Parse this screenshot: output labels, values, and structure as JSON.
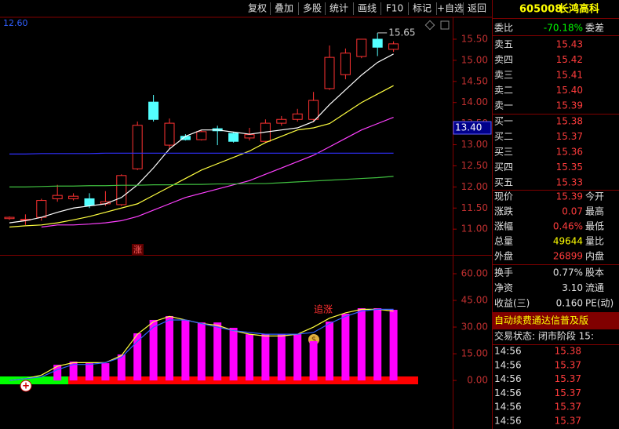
{
  "toolbar": [
    "复权",
    "叠加",
    "多股",
    "统计",
    "画线",
    "F10",
    "标记",
    "+自选",
    "返回"
  ],
  "chart_data": [
    {
      "type": "candlestick",
      "up_color": "#ff3232",
      "down_color": "#54ffff",
      "ylim": [
        10.39,
        16.02
      ],
      "yticks": [
        {
          "value": 11,
          "label": "11.00"
        },
        {
          "value": 11.5,
          "label": "11.50"
        },
        {
          "value": 12,
          "label": "12.00"
        },
        {
          "value": 12.5,
          "label": "12.50"
        },
        {
          "value": 13,
          "label": "13.00"
        },
        {
          "value": 13.5,
          "label": "13.50"
        },
        {
          "value": 14,
          "label": "14.00"
        },
        {
          "value": 14.5,
          "label": "14.50"
        },
        {
          "value": 15,
          "label": "15.00"
        },
        {
          "value": 15.5,
          "label": "15.50"
        }
      ],
      "open": [
        11.25,
        11.22,
        11.28,
        11.72,
        11.72,
        11.72,
        11.6,
        11.58,
        12.43,
        14.01,
        12.99,
        13.2,
        13.12,
        13.38,
        13.27,
        13.16,
        13.08,
        13.51,
        13.6,
        13.6,
        14.33,
        14.66,
        15.09,
        15.5,
        15.26
      ],
      "high": [
        11.3,
        11.35,
        11.72,
        12.05,
        11.85,
        11.85,
        11.9,
        12.3,
        13.55,
        14.18,
        13.62,
        13.25,
        13.35,
        13.45,
        13.3,
        13.4,
        13.6,
        13.68,
        13.85,
        14.25,
        15.35,
        15.28,
        15.5,
        15.65,
        15.45
      ],
      "low": [
        11.22,
        11.1,
        11.2,
        11.65,
        11.68,
        11.5,
        11.55,
        11.55,
        12.4,
        13.55,
        12.9,
        13.1,
        13.1,
        12.99,
        13.05,
        13.1,
        13.05,
        13.45,
        13.55,
        13.55,
        14.3,
        14.55,
        15.05,
        15.1,
        15.2
      ],
      "close": [
        11.28,
        11.23,
        11.68,
        11.8,
        11.78,
        11.56,
        11.65,
        12.27,
        13.46,
        13.6,
        13.51,
        13.12,
        13.31,
        13.33,
        13.08,
        13.24,
        13.51,
        13.6,
        13.73,
        14.05,
        15.07,
        15.17,
        15.5,
        15.31,
        15.39
      ],
      "series": [
        {
          "color": "#ffffff",
          "values": [
            11.15,
            11.2,
            11.28,
            11.4,
            11.5,
            11.55,
            11.6,
            11.75,
            12.05,
            12.45,
            12.9,
            13.2,
            13.35,
            13.35,
            13.3,
            13.25,
            13.3,
            13.35,
            13.4,
            13.55,
            13.95,
            14.3,
            14.65,
            14.95,
            15.15
          ]
        },
        {
          "color": "#ffff40",
          "values": [
            11.05,
            11.08,
            11.1,
            11.15,
            11.22,
            11.3,
            11.4,
            11.5,
            11.6,
            11.8,
            12.0,
            12.2,
            12.4,
            12.55,
            12.7,
            12.85,
            13.05,
            13.2,
            13.35,
            13.4,
            13.5,
            13.75,
            14.0,
            14.2,
            14.4
          ]
        },
        {
          "color": "#ff40ff",
          "values": [
            null,
            null,
            11.05,
            11.1,
            11.1,
            11.12,
            11.15,
            11.2,
            11.3,
            11.45,
            11.6,
            11.75,
            11.85,
            11.95,
            12.05,
            12.15,
            12.3,
            12.45,
            12.6,
            12.75,
            12.95,
            13.15,
            13.35,
            13.5,
            13.65
          ]
        },
        {
          "color": "#3030ff",
          "values": [
            12.78,
            12.78,
            12.79,
            12.79,
            12.79,
            12.79,
            12.8,
            12.8,
            12.8,
            12.8,
            12.8,
            12.8,
            12.8,
            12.8,
            12.8,
            12.8,
            12.8,
            12.8,
            12.8,
            12.8,
            12.8,
            12.8,
            12.8,
            12.8,
            12.8
          ]
        },
        {
          "color": "#40c040",
          "values": [
            12.0,
            12.0,
            12.01,
            12.02,
            12.02,
            12.03,
            12.03,
            12.04,
            12.04,
            12.05,
            12.05,
            12.06,
            12.06,
            12.07,
            12.07,
            12.08,
            12.08,
            12.1,
            12.12,
            12.14,
            12.16,
            12.18,
            12.2,
            12.22,
            12.25
          ]
        }
      ],
      "annotations": [
        {
          "text": "12.60"
        },
        {
          "text": "涨"
        },
        {
          "value": 15.65,
          "label": "15.65"
        }
      ],
      "cursor_price": {
        "value": 13.4,
        "label": "13.40"
      }
    },
    {
      "type": "bar",
      "color": "#ff00ff",
      "ylim": [
        -27.3,
        69.7
      ],
      "yticks": [
        {
          "value": 0,
          "label": "0.00"
        },
        {
          "value": 15,
          "label": "15.00"
        },
        {
          "value": 30,
          "label": "30.00"
        },
        {
          "value": 45,
          "label": "45.00"
        },
        {
          "value": 60,
          "label": "60.00"
        }
      ],
      "values": [
        null,
        null,
        null,
        8.8,
        10.6,
        9.7,
        9.7,
        14.6,
        26.5,
        34.0,
        36.2,
        34.0,
        32.6,
        32.6,
        29.6,
        26.0,
        26.0,
        26.0,
        26.0,
        22.1,
        33.1,
        37.5,
        40.6,
        40.6,
        39.7
      ],
      "series": [
        {
          "color": "#ffff40",
          "values": [
            0,
            1,
            3,
            8,
            10,
            10,
            10,
            14,
            26,
            33,
            36,
            34,
            32,
            31,
            28,
            26,
            25,
            25,
            26,
            30,
            35,
            38,
            40,
            40,
            39
          ]
        },
        {
          "color": "#3060ff",
          "values": [
            0,
            1,
            2,
            6,
            9,
            9,
            10,
            13,
            22,
            30,
            34,
            34,
            32,
            30,
            28,
            27,
            26,
            26,
            26,
            27,
            32,
            36,
            39,
            40,
            40
          ]
        }
      ],
      "annotations": [
        {
          "text": "追涨"
        }
      ]
    }
  ],
  "quote_panel": {
    "header": {
      "code": "605008",
      "name": "长鸿高科"
    },
    "order_ratio": {
      "label": "委比",
      "value": "-70.18%",
      "next": "委差"
    },
    "asks": [
      {
        "label": "卖五",
        "price": "15.43"
      },
      {
        "label": "卖四",
        "price": "15.42"
      },
      {
        "label": "卖三",
        "price": "15.41"
      },
      {
        "label": "卖二",
        "price": "15.40"
      },
      {
        "label": "卖一",
        "price": "15.39"
      }
    ],
    "bids": [
      {
        "label": "买一",
        "price": "15.38"
      },
      {
        "label": "买二",
        "price": "15.37"
      },
      {
        "label": "买三",
        "price": "15.36"
      },
      {
        "label": "买四",
        "price": "15.35"
      },
      {
        "label": "买五",
        "price": "15.33"
      }
    ],
    "stats": [
      {
        "label": "现价",
        "value": "15.39",
        "next": "今开"
      },
      {
        "label": "涨跌",
        "value": "0.07",
        "next": "最高"
      },
      {
        "label": "涨幅",
        "value": "0.46%",
        "next": "最低"
      },
      {
        "label": "总量",
        "value": "49644",
        "next": "量比"
      },
      {
        "label": "外盘",
        "value": "26899",
        "next": "内盘"
      }
    ],
    "fundamentals": [
      {
        "label": "换手",
        "value": "0.77%",
        "next": "股本"
      },
      {
        "label": "净资",
        "value": "3.10",
        "next": "流通"
      },
      {
        "label": "收益(三)",
        "value": "0.160",
        "next": "PE(动)"
      }
    ],
    "banner": "自动续费通达信普及版",
    "status": "交易状态: 闭市阶段 15:",
    "ticks": [
      {
        "time": "14:56",
        "price": "15.38"
      },
      {
        "time": "14:56",
        "price": "15.37"
      },
      {
        "time": "14:56",
        "price": "15.37"
      },
      {
        "time": "14:56",
        "price": "15.37"
      },
      {
        "time": "14:56",
        "price": "15.37"
      },
      {
        "time": "14:56",
        "price": "15.37"
      }
    ]
  }
}
